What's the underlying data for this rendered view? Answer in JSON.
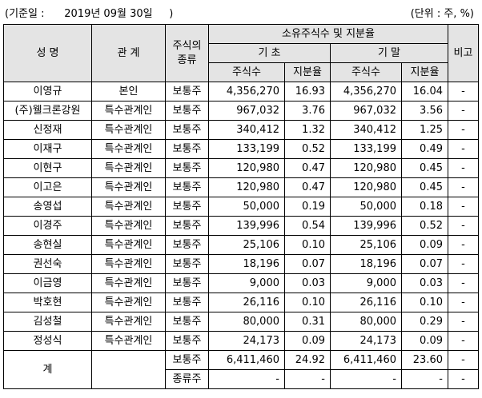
{
  "header": {
    "date_note": "(기준일 :      2019년 09월 30일     )",
    "unit_note": "(단위 : 주, %)"
  },
  "columns": {
    "name": "성 명",
    "relation": "관 계",
    "stock_type": "주식의\n종류",
    "group": "소유주식수 및 지분율",
    "begin": "기 초",
    "end": "기 말",
    "shares": "주식수",
    "ratio": "지분율",
    "note": "비고"
  },
  "rows": [
    {
      "name": "이영규",
      "relation": "본인",
      "type": "보통주",
      "b_shares": "4,356,270",
      "b_ratio": "16.93",
      "e_shares": "4,356,270",
      "e_ratio": "16.04",
      "note": "-"
    },
    {
      "name": "(주)웰크론강원",
      "relation": "특수관계인",
      "type": "보통주",
      "b_shares": "967,032",
      "b_ratio": "3.76",
      "e_shares": "967,032",
      "e_ratio": "3.56",
      "note": "-"
    },
    {
      "name": "신정재",
      "relation": "특수관계인",
      "type": "보통주",
      "b_shares": "340,412",
      "b_ratio": "1.32",
      "e_shares": "340,412",
      "e_ratio": "1.25",
      "note": "-"
    },
    {
      "name": "이재구",
      "relation": "특수관계인",
      "type": "보통주",
      "b_shares": "133,199",
      "b_ratio": "0.52",
      "e_shares": "133,199",
      "e_ratio": "0.49",
      "note": "-"
    },
    {
      "name": "이현구",
      "relation": "특수관계인",
      "type": "보통주",
      "b_shares": "120,980",
      "b_ratio": "0.47",
      "e_shares": "120,980",
      "e_ratio": "0.45",
      "note": "-"
    },
    {
      "name": "이고은",
      "relation": "특수관계인",
      "type": "보통주",
      "b_shares": "120,980",
      "b_ratio": "0.47",
      "e_shares": "120,980",
      "e_ratio": "0.45",
      "note": "-"
    },
    {
      "name": "송영섭",
      "relation": "특수관계인",
      "type": "보통주",
      "b_shares": "50,000",
      "b_ratio": "0.19",
      "e_shares": "50,000",
      "e_ratio": "0.18",
      "note": "-"
    },
    {
      "name": "이경주",
      "relation": "특수관계인",
      "type": "보통주",
      "b_shares": "139,996",
      "b_ratio": "0.54",
      "e_shares": "139,996",
      "e_ratio": "0.52",
      "note": "-"
    },
    {
      "name": "송현실",
      "relation": "특수관계인",
      "type": "보통주",
      "b_shares": "25,106",
      "b_ratio": "0.10",
      "e_shares": "25,106",
      "e_ratio": "0.09",
      "note": "-"
    },
    {
      "name": "권선숙",
      "relation": "특수관계인",
      "type": "보통주",
      "b_shares": "18,196",
      "b_ratio": "0.07",
      "e_shares": "18,196",
      "e_ratio": "0.07",
      "note": "-"
    },
    {
      "name": "이금영",
      "relation": "특수관계인",
      "type": "보통주",
      "b_shares": "9,000",
      "b_ratio": "0.03",
      "e_shares": "9,000",
      "e_ratio": "0.03",
      "note": "-"
    },
    {
      "name": "박호현",
      "relation": "특수관계인",
      "type": "보통주",
      "b_shares": "26,116",
      "b_ratio": "0.10",
      "e_shares": "26,116",
      "e_ratio": "0.10",
      "note": "-"
    },
    {
      "name": "김성철",
      "relation": "특수관계인",
      "type": "보통주",
      "b_shares": "80,000",
      "b_ratio": "0.31",
      "e_shares": "80,000",
      "e_ratio": "0.29",
      "note": "-"
    },
    {
      "name": "정성식",
      "relation": "특수관계인",
      "type": "보통주",
      "b_shares": "24,173",
      "b_ratio": "0.09",
      "e_shares": "24,173",
      "e_ratio": "0.09",
      "note": "-"
    }
  ],
  "total": {
    "label": "계",
    "rows": [
      {
        "type": "보통주",
        "b_shares": "6,411,460",
        "b_ratio": "24.92",
        "e_shares": "6,411,460",
        "e_ratio": "23.60",
        "note": "-"
      },
      {
        "type": "종류주",
        "b_shares": "-",
        "b_ratio": "-",
        "e_shares": "-",
        "e_ratio": "-",
        "note": "-"
      }
    ]
  }
}
